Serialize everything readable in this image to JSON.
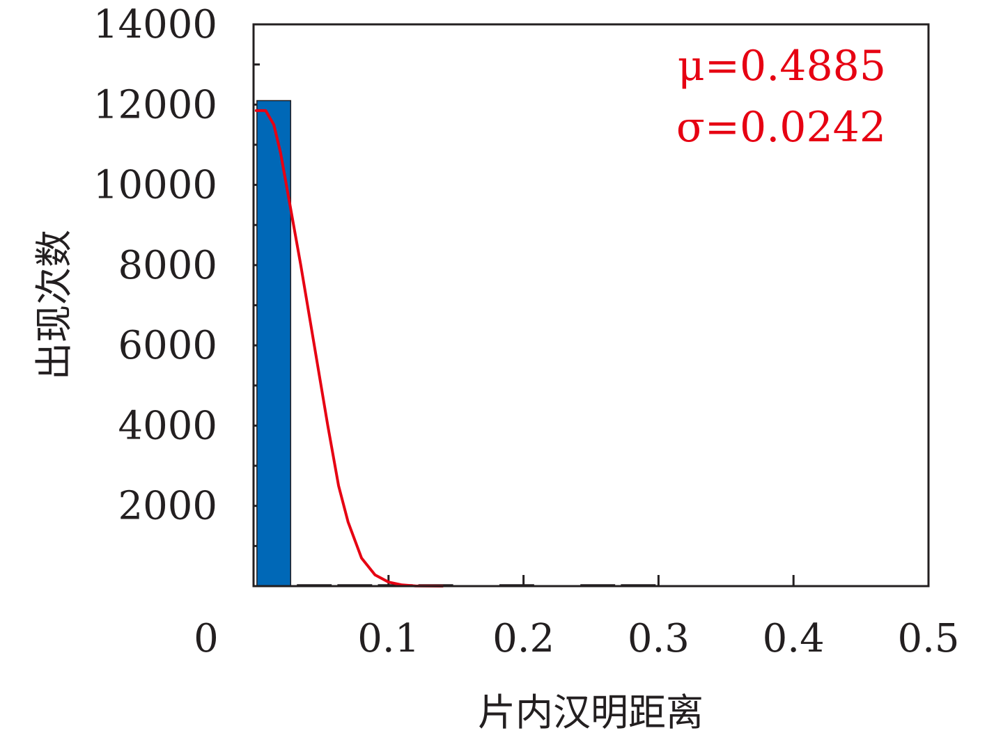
{
  "chart_data": {
    "type": "bar",
    "title": "",
    "xlabel": "片内汉明距离",
    "ylabel": "出现次数",
    "xlim": [
      0,
      0.5
    ],
    "ylim": [
      0,
      14000
    ],
    "x_ticks": [
      "0",
      "0.1",
      "0.2",
      "0.3",
      "0.4",
      "0.5"
    ],
    "x_tick_values": [
      0,
      0.1,
      0.2,
      0.3,
      0.4,
      0.5
    ],
    "y_ticks": [
      "2000",
      "4000",
      "6000",
      "8000",
      "10000",
      "12000",
      "14000"
    ],
    "y_tick_values": [
      2000,
      4000,
      6000,
      8000,
      10000,
      12000,
      14000
    ],
    "bar_color": "#0068b7",
    "curve_color": "#e60012",
    "bins": [
      {
        "x0": 0.0025,
        "x1": 0.0275,
        "count": 12100
      },
      {
        "x0": 0.0325,
        "x1": 0.0575,
        "count": 5
      },
      {
        "x0": 0.0625,
        "x1": 0.0875,
        "count": 5
      },
      {
        "x0": 0.0925,
        "x1": 0.1175,
        "count": 5
      },
      {
        "x0": 0.1225,
        "x1": 0.1475,
        "count": 5
      },
      {
        "x0": 0.1825,
        "x1": 0.2075,
        "count": 5
      },
      {
        "x0": 0.2425,
        "x1": 0.2675,
        "count": 5
      },
      {
        "x0": 0.2725,
        "x1": 0.2975,
        "count": 5
      }
    ],
    "fit_curve": [
      {
        "x": 0.002,
        "y": 11850
      },
      {
        "x": 0.009,
        "y": 11850
      },
      {
        "x": 0.015,
        "y": 11500
      },
      {
        "x": 0.02,
        "y": 10800
      },
      {
        "x": 0.027,
        "y": 9500
      },
      {
        "x": 0.035,
        "y": 8000
      },
      {
        "x": 0.045,
        "y": 6000
      },
      {
        "x": 0.05,
        "y": 5000
      },
      {
        "x": 0.055,
        "y": 4000
      },
      {
        "x": 0.063,
        "y": 2500
      },
      {
        "x": 0.07,
        "y": 1600
      },
      {
        "x": 0.08,
        "y": 700
      },
      {
        "x": 0.09,
        "y": 280
      },
      {
        "x": 0.1,
        "y": 100
      },
      {
        "x": 0.11,
        "y": 30
      },
      {
        "x": 0.12,
        "y": 5
      },
      {
        "x": 0.14,
        "y": 0
      }
    ],
    "annotations": [
      "μ=0.4885",
      "σ=0.0242"
    ]
  }
}
